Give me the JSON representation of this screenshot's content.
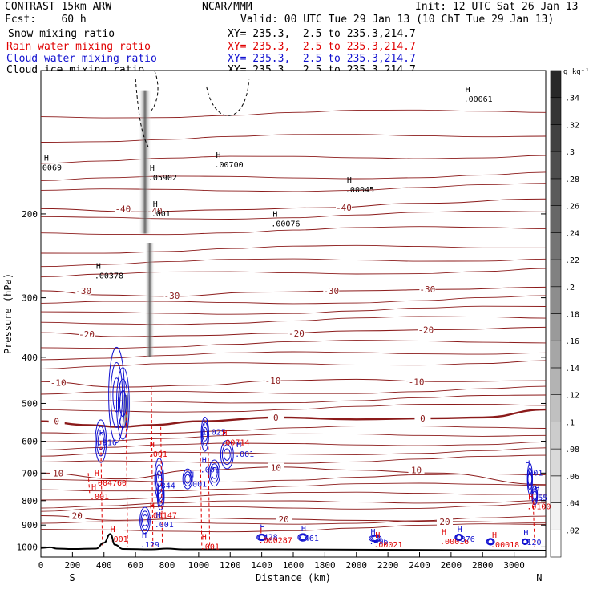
{
  "header": {
    "title": "CONTRAST 15km ARW",
    "center": "NCAR/MMM",
    "init": "Init: 12 UTC Sat 26 Jan 13",
    "fcst": "Fcst:    60 h",
    "valid": "Valid: 00 UTC Tue 29 Jan 13 (10 ChT Tue 29 Jan 13)"
  },
  "legend": [
    {
      "name": "Snow mixing ratio",
      "color": "#000000",
      "xy": "XY= 235.3,  2.5 to 235.3,214.7"
    },
    {
      "name": "Rain water mixing ratio",
      "color": "#e00000",
      "xy": "XY= 235.3,  2.5 to 235.3,214.7"
    },
    {
      "name": "Cloud water mixing ratio",
      "color": "#1010d0",
      "xy": "XY= 235.3,  2.5 to 235.3,214.7"
    },
    {
      "name": "Cloud ice mixing ratio",
      "color": "#000000",
      "xy": "XY= 235.3,  2.5 to 235.3,214.7"
    }
  ],
  "colorbar": {
    "unit": "g kg⁻¹",
    "levels": [
      ".02",
      ".04",
      ".06",
      ".08",
      ".1",
      ".12",
      ".14",
      ".16",
      ".18",
      ".2",
      ".22",
      ".24",
      ".26",
      ".28",
      ".3",
      ".32",
      ".34"
    ]
  },
  "chart_data": {
    "type": "cross-section",
    "xlabel": "Distance (km)",
    "ylabel": "Pressure (hPa)",
    "xlim": [
      0,
      3200
    ],
    "ylim": [
      1050,
      100
    ],
    "log_y": true,
    "x_ticks": [
      0,
      200,
      400,
      600,
      800,
      1000,
      1200,
      1400,
      1600,
      1800,
      2000,
      2200,
      2400,
      2600,
      2800,
      3000
    ],
    "y_ticks": [
      200,
      300,
      400,
      500,
      600,
      700,
      800,
      900,
      1000
    ],
    "end_labels": {
      "left": "S",
      "right": "N"
    },
    "temperature_contours": [
      {
        "label": "-40",
        "points": [
          [
            0,
            195
          ],
          [
            600,
            198
          ],
          [
            1200,
            196
          ],
          [
            1800,
            194
          ],
          [
            2400,
            190
          ],
          [
            3200,
            186
          ]
        ],
        "labels_at": [
          [
            520,
            195
          ],
          [
            720,
            197
          ],
          [
            1920,
            194
          ]
        ]
      },
      {
        "label": "-30",
        "points": [
          [
            0,
            290
          ],
          [
            400,
            296
          ],
          [
            800,
            298
          ],
          [
            1400,
            292
          ],
          [
            2000,
            290
          ],
          [
            2600,
            288
          ],
          [
            3200,
            285
          ]
        ],
        "labels_at": [
          [
            270,
            290
          ],
          [
            830,
            297
          ],
          [
            1840,
            290
          ],
          [
            2450,
            288
          ]
        ]
      },
      {
        "label": "-20",
        "points": [
          [
            0,
            355
          ],
          [
            500,
            362
          ],
          [
            1000,
            360
          ],
          [
            1500,
            356
          ],
          [
            2000,
            352
          ],
          [
            2600,
            350
          ],
          [
            3200,
            346
          ]
        ],
        "labels_at": [
          [
            290,
            358
          ],
          [
            1620,
            356
          ],
          [
            2440,
            350
          ]
        ]
      },
      {
        "label": "-10",
        "points": [
          [
            0,
            450
          ],
          [
            500,
            462
          ],
          [
            1000,
            458
          ],
          [
            1500,
            448
          ],
          [
            2000,
            445
          ],
          [
            2500,
            450
          ],
          [
            3200,
            448
          ]
        ],
        "labels_at": [
          [
            110,
            452
          ],
          [
            1470,
            448
          ],
          [
            2380,
            450
          ]
        ]
      },
      {
        "label": "0",
        "points": [
          [
            0,
            545
          ],
          [
            300,
            555
          ],
          [
            500,
            560
          ],
          [
            700,
            555
          ],
          [
            1000,
            545
          ],
          [
            1500,
            535
          ],
          [
            2000,
            540
          ],
          [
            2500,
            537
          ],
          [
            2800,
            535
          ],
          [
            3200,
            515
          ]
        ],
        "labels_at": [
          [
            100,
            545
          ],
          [
            1490,
            535
          ],
          [
            2420,
            537
          ]
        ]
      },
      {
        "label": "10",
        "points": [
          [
            0,
            700
          ],
          [
            500,
            720
          ],
          [
            1000,
            690
          ],
          [
            1500,
            680
          ],
          [
            2000,
            690
          ],
          [
            2500,
            700
          ],
          [
            3200,
            740
          ]
        ],
        "labels_at": [
          [
            110,
            700
          ],
          [
            1490,
            682
          ],
          [
            2380,
            690
          ]
        ]
      },
      {
        "label": "20",
        "points": [
          [
            0,
            860
          ],
          [
            500,
            880
          ],
          [
            1000,
            870
          ],
          [
            1500,
            875
          ],
          [
            2000,
            880
          ],
          [
            2600,
            885
          ],
          [
            3200,
            890
          ]
        ],
        "labels_at": [
          [
            230,
            860
          ],
          [
            1540,
            875
          ],
          [
            2560,
            885
          ]
        ]
      }
    ],
    "extra_temperature_isotherms_hpa_left": [
      125,
      140,
      155,
      170,
      180,
      205,
      220,
      240,
      255,
      270,
      310,
      325,
      340,
      380,
      400,
      420,
      480,
      500,
      520,
      575,
      595,
      620,
      645,
      670,
      730,
      760,
      790,
      820,
      840,
      900,
      930
    ],
    "zero_isotherm_label": "0",
    "maxima_labels": [
      {
        "text": ".00061",
        "x": 2700,
        "p": 115,
        "color": "black"
      },
      {
        "text": "0069",
        "x": 30,
        "p": 160,
        "color": "black"
      },
      {
        "text": ".00700",
        "x": 1120,
        "p": 158,
        "color": "black"
      },
      {
        "text": ".05902",
        "x": 700,
        "p": 168,
        "color": "black"
      },
      {
        "text": ".00045",
        "x": 1950,
        "p": 178,
        "color": "black"
      },
      {
        "text": ".00076",
        "x": 1480,
        "p": 210,
        "color": "black"
      },
      {
        "text": ".001",
        "x": 720,
        "p": 200,
        "color": "black"
      },
      {
        "text": ".00378",
        "x": 360,
        "p": 270,
        "color": "black"
      },
      {
        "text": ".916",
        "x": 380,
        "p": 605,
        "color": "blue"
      },
      {
        "text": "1.025",
        "x": 1040,
        "p": 575,
        "color": "blue"
      },
      {
        "text": ".00714",
        "x": 1160,
        "p": 605,
        "color": "red"
      },
      {
        "text": ".001",
        "x": 1250,
        "p": 640,
        "color": "blue"
      },
      {
        "text": ".001",
        "x": 700,
        "p": 640,
        "color": "red"
      },
      {
        "text": ".001",
        "x": 1030,
        "p": 690,
        "color": "blue"
      },
      {
        "text": ".001",
        "x": 3080,
        "p": 700,
        "color": "blue"
      },
      {
        "text": ".004760",
        "x": 350,
        "p": 735,
        "color": "red"
      },
      {
        "text": ".844",
        "x": 750,
        "p": 745,
        "color": "blue"
      },
      {
        "text": ".001",
        "x": 950,
        "p": 740,
        "color": "blue"
      },
      {
        "text": ".001",
        "x": 330,
        "p": 785,
        "color": "red"
      },
      {
        "text": ".55",
        "x": 3140,
        "p": 790,
        "color": "blue"
      },
      {
        "text": ".0100",
        "x": 3100,
        "p": 825,
        "color": "red"
      },
      {
        "text": ".00147",
        "x": 700,
        "p": 860,
        "color": "red"
      },
      {
        "text": ".001",
        "x": 740,
        "p": 900,
        "color": "blue"
      },
      {
        "text": ".001",
        "x": 450,
        "p": 965,
        "color": "red"
      },
      {
        "text": ".129",
        "x": 650,
        "p": 990,
        "color": "blue"
      },
      {
        "text": ".001",
        "x": 1030,
        "p": 1000,
        "color": "red"
      },
      {
        "text": ".428",
        "x": 1400,
        "p": 955,
        "color": "blue"
      },
      {
        "text": ".000287",
        "x": 1400,
        "p": 970,
        "color": "red"
      },
      {
        "text": ".461",
        "x": 1660,
        "p": 960,
        "color": "blue"
      },
      {
        "text": ".496",
        "x": 2100,
        "p": 975,
        "color": "blue"
      },
      {
        "text": ".00021",
        "x": 2130,
        "p": 990,
        "color": "red"
      },
      {
        "text": ".376",
        "x": 2650,
        "p": 965,
        "color": "blue"
      },
      {
        "text": ".00016",
        "x": 2550,
        "p": 975,
        "color": "red"
      },
      {
        "text": ".00018",
        "x": 2870,
        "p": 990,
        "color": "red"
      },
      {
        "text": ".120",
        "x": 3070,
        "p": 980,
        "color": "blue"
      }
    ]
  }
}
